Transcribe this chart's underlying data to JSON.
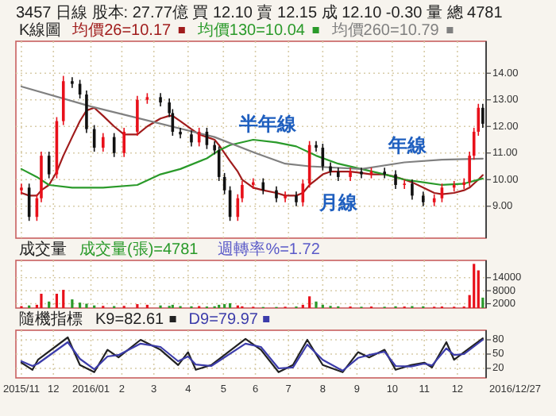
{
  "chart_data": [
    {
      "type": "candlestick",
      "title": "3457 日線 股本: 27.77億 買 12.10 賣 12.15 成 12.10 -0.30 量 總 4781",
      "subtitle": "K線圖",
      "legend": "top left",
      "grid": true,
      "tick_labels": "y",
      "xlim": [
        "2015-10-28",
        "2016-12-27"
      ],
      "xticks": [
        {
          "value": "2015-11-02",
          "label": null
        },
        {
          "value": "2015-12-01",
          "label": null
        },
        {
          "value": "2016-01-04",
          "label": null
        },
        {
          "value": "2016-02-01",
          "label": null
        },
        {
          "value": "2016-03-01",
          "label": null
        },
        {
          "value": "2016-04-01",
          "label": null
        },
        {
          "value": "2016-05-03",
          "label": null
        },
        {
          "value": "2016-06-01",
          "label": null
        },
        {
          "value": "2016-07-01",
          "label": null
        },
        {
          "value": "2016-08-01",
          "label": null
        },
        {
          "value": "2016-09-01",
          "label": null
        },
        {
          "value": "2016-10-03",
          "label": null
        },
        {
          "value": "2016-11-01",
          "label": null
        },
        {
          "value": "2016-12-01",
          "label": null
        }
      ],
      "ylim": [
        7.8,
        15.2
      ],
      "yticks": [
        {
          "value": 9,
          "label": "9.00"
        },
        {
          "value": 10,
          "label": "10.00"
        },
        {
          "value": 11,
          "label": "11.00"
        },
        {
          "value": 12,
          "label": "12.00"
        },
        {
          "value": 13,
          "label": "13.00"
        },
        {
          "value": 14,
          "label": "14.00"
        }
      ],
      "x": [
        "2015-11-02",
        "2015-11-09",
        "2015-11-16",
        "2015-11-20",
        "2015-11-27",
        "2015-12-04",
        "2015-12-10",
        "2015-12-18",
        "2015-12-25",
        "2015-12-31",
        "2016-01-07",
        "2016-01-15",
        "2016-01-25",
        "2016-02-03",
        "2016-02-15",
        "2016-02-24",
        "2016-03-07",
        "2016-03-15",
        "2016-03-18",
        "2016-03-25",
        "2016-04-04",
        "2016-04-11",
        "2016-04-18",
        "2016-04-25",
        "2016-04-29",
        "2016-05-04",
        "2016-05-09",
        "2016-05-16",
        "2016-05-20",
        "2016-05-30",
        "2016-06-08",
        "2016-06-20",
        "2016-06-28",
        "2016-07-08",
        "2016-07-14",
        "2016-07-20",
        "2016-07-26",
        "2016-08-01",
        "2016-08-08",
        "2016-08-15",
        "2016-08-26",
        "2016-09-05",
        "2016-09-14",
        "2016-09-26",
        "2016-10-06",
        "2016-10-14",
        "2016-10-21",
        "2016-10-31",
        "2016-11-10",
        "2016-11-17",
        "2016-11-28",
        "2016-12-07",
        "2016-12-12",
        "2016-12-16",
        "2016-12-20",
        "2016-12-24"
      ],
      "ohlc": [
        [
          9.6,
          9.85,
          9.45,
          9.7
        ],
        [
          9.7,
          9.85,
          8.45,
          8.6
        ],
        [
          8.6,
          9.45,
          8.45,
          9.3
        ],
        [
          9.3,
          11.05,
          9.15,
          10.9
        ],
        [
          10.9,
          11.05,
          10.05,
          10.2
        ],
        [
          10.2,
          12.35,
          10.05,
          12.2
        ],
        [
          12.2,
          13.9,
          12.05,
          13.7
        ],
        [
          13.7,
          13.85,
          13.45,
          13.6
        ],
        [
          13.6,
          13.75,
          13.05,
          13.2
        ],
        [
          13.2,
          13.35,
          11.75,
          11.9
        ],
        [
          11.9,
          12.05,
          11.05,
          11.2
        ],
        [
          11.2,
          11.75,
          11.05,
          11.6
        ],
        [
          11.6,
          11.75,
          10.85,
          11
        ],
        [
          11,
          11.95,
          10.85,
          11.8
        ],
        [
          11.8,
          13.15,
          11.65,
          13
        ],
        [
          13,
          13.25,
          12.85,
          13.1
        ],
        [
          13.1,
          13.25,
          12.75,
          12.9
        ],
        [
          12.9,
          13.05,
          12.35,
          12.5
        ],
        [
          12.5,
          12.65,
          11.65,
          11.8
        ],
        [
          11.8,
          11.95,
          11.55,
          11.7
        ],
        [
          11.7,
          11.85,
          11.25,
          11.4
        ],
        [
          11.4,
          11.95,
          11.25,
          11.8
        ],
        [
          11.8,
          11.95,
          11.15,
          11.3
        ],
        [
          11.3,
          11.45,
          10.95,
          11.1
        ],
        [
          11.1,
          11.25,
          9.95,
          10.1
        ],
        [
          10.1,
          10.25,
          9.45,
          9.6
        ],
        [
          9.6,
          9.75,
          8.45,
          8.6
        ],
        [
          8.6,
          9.45,
          8.45,
          9.3
        ],
        [
          9.3,
          9.95,
          9.15,
          9.8
        ],
        [
          9.8,
          10.05,
          9.65,
          9.9
        ],
        [
          9.9,
          10.05,
          9.45,
          9.6
        ],
        [
          9.6,
          9.75,
          9.15,
          9.3
        ],
        [
          9.3,
          9.55,
          9.15,
          9.4
        ],
        [
          9.4,
          9.55,
          9,
          9.15
        ],
        [
          9.15,
          10,
          9,
          9.85
        ],
        [
          9.85,
          11.45,
          9.7,
          11.3
        ],
        [
          11.3,
          11.45,
          11.05,
          11.2
        ],
        [
          11.2,
          11.35,
          10.35,
          10.5
        ],
        [
          10.5,
          10.65,
          10.15,
          10.3
        ],
        [
          10.3,
          10.45,
          9.95,
          10.1
        ],
        [
          10.1,
          10.45,
          9.95,
          10.3
        ],
        [
          10.3,
          10.45,
          10.05,
          10.2
        ],
        [
          10.2,
          10.45,
          10.05,
          10.3
        ],
        [
          10.3,
          10.45,
          10.05,
          10.2
        ],
        [
          10.2,
          10.35,
          9.65,
          9.8
        ],
        [
          9.8,
          10,
          9.65,
          9.85
        ],
        [
          9.85,
          10,
          9.25,
          9.4
        ],
        [
          9.4,
          9.55,
          9,
          9.15
        ],
        [
          9.15,
          9.45,
          9,
          9.3
        ],
        [
          9.3,
          9.85,
          9.15,
          9.7
        ],
        [
          9.7,
          9.95,
          9.55,
          9.8
        ],
        [
          9.8,
          10.05,
          9.65,
          9.9
        ],
        [
          9.9,
          11.05,
          9.75,
          10.9
        ],
        [
          10.9,
          11.95,
          10.75,
          11.8
        ],
        [
          11.8,
          12.85,
          11.65,
          12.7
        ],
        [
          12.7,
          12.85,
          11.95,
          12.1
        ]
      ],
      "series": [
        {
          "name": "均價26=10.17",
          "type": "line",
          "color": "#a01c1c",
          "values": [
            9.5,
            9.4,
            9.4,
            9.6,
            9.8,
            10.3,
            10.9,
            11.6,
            12.2,
            12.6,
            12.7,
            12.4,
            12.0,
            11.7,
            11.7,
            12.0,
            12.3,
            12.4,
            12.4,
            12.2,
            11.9,
            11.7,
            11.6,
            11.5,
            11.3,
            11.0,
            10.7,
            10.3,
            10.0,
            9.7,
            9.6,
            9.5,
            9.4,
            9.4,
            9.5,
            9.8,
            10.0,
            10.2,
            10.3,
            10.3,
            10.3,
            10.25,
            10.2,
            10.2,
            10.1,
            10.0,
            9.9,
            9.7,
            9.5,
            9.45,
            9.5,
            9.6,
            9.7,
            9.85,
            10.0,
            10.17
          ]
        },
        {
          "name": "均價130=10.04",
          "type": "line",
          "color": "#2a9a2a",
          "x": [
            "2015-11-02",
            "2015-11-16",
            "2015-11-27",
            "2015-12-18",
            "2016-01-15",
            "2016-02-15",
            "2016-03-07",
            "2016-03-25",
            "2016-04-18",
            "2016-04-29",
            "2016-05-09",
            "2016-05-30",
            "2016-06-20",
            "2016-07-08",
            "2016-07-26",
            "2016-08-15",
            "2016-09-05",
            "2016-09-26",
            "2016-10-14",
            "2016-10-31",
            "2016-11-17",
            "2016-12-07",
            "2016-12-24"
          ],
          "values": [
            10.4,
            10.1,
            9.8,
            9.7,
            9.7,
            9.8,
            10.2,
            10.4,
            10.8,
            11.1,
            11.3,
            11.5,
            11.4,
            11.25,
            10.9,
            10.6,
            10.4,
            10.2,
            10.0,
            9.9,
            9.8,
            9.85,
            10.04
          ]
        },
        {
          "name": "均價260=10.79",
          "type": "line",
          "color": "#808080",
          "x": [
            "2015-11-02",
            "2016-01-04",
            "2016-04-25",
            "2016-06-01",
            "2016-06-28",
            "2016-07-20",
            "2016-09-05",
            "2016-10-14",
            "2016-11-17",
            "2016-12-24"
          ],
          "values": [
            13.5,
            12.75,
            11.6,
            11.0,
            10.6,
            10.5,
            10.4,
            10.65,
            10.75,
            10.79
          ]
        }
      ],
      "annotations": [
        "半年線",
        "年線",
        "月線"
      ]
    },
    {
      "type": "bar",
      "title": "成交量",
      "grid": true,
      "tick_labels": "y",
      "xlim": [
        "2015-10-28",
        "2016-12-27"
      ],
      "xticks": [
        {
          "value": "2015-11-02",
          "label": null
        },
        {
          "value": "2015-12-01",
          "label": null
        },
        {
          "value": "2016-01-04",
          "label": null
        },
        {
          "value": "2016-02-01",
          "label": null
        },
        {
          "value": "2016-03-01",
          "label": null
        },
        {
          "value": "2016-04-01",
          "label": null
        },
        {
          "value": "2016-05-03",
          "label": null
        },
        {
          "value": "2016-06-01",
          "label": null
        },
        {
          "value": "2016-07-01",
          "label": null
        },
        {
          "value": "2016-08-01",
          "label": null
        },
        {
          "value": "2016-09-01",
          "label": null
        },
        {
          "value": "2016-10-03",
          "label": null
        },
        {
          "value": "2016-11-01",
          "label": null
        },
        {
          "value": "2016-12-01",
          "label": null
        }
      ],
      "ylim": [
        0,
        22000
      ],
      "yticks": [
        2000,
        8000,
        14000
      ],
      "x": [
        "2015-11-02",
        "2015-11-09",
        "2015-11-16",
        "2015-11-20",
        "2015-11-27",
        "2015-12-04",
        "2015-12-10",
        "2015-12-18",
        "2015-12-25",
        "2015-12-31",
        "2016-01-07",
        "2016-01-15",
        "2016-01-25",
        "2016-02-03",
        "2016-02-15",
        "2016-02-24",
        "2016-03-07",
        "2016-03-15",
        "2016-03-18",
        "2016-03-25",
        "2016-04-04",
        "2016-04-11",
        "2016-04-18",
        "2016-04-25",
        "2016-04-29",
        "2016-05-04",
        "2016-05-09",
        "2016-05-16",
        "2016-05-20",
        "2016-05-30",
        "2016-06-08",
        "2016-06-20",
        "2016-06-28",
        "2016-07-08",
        "2016-07-14",
        "2016-07-20",
        "2016-07-26",
        "2016-08-01",
        "2016-08-08",
        "2016-08-15",
        "2016-08-26",
        "2016-09-05",
        "2016-09-14",
        "2016-09-26",
        "2016-10-06",
        "2016-10-14",
        "2016-10-21",
        "2016-10-31",
        "2016-11-10",
        "2016-11-17",
        "2016-11-28",
        "2016-12-07",
        "2016-12-12",
        "2016-12-16",
        "2016-12-20",
        "2016-12-24"
      ],
      "values": [
        900,
        1200,
        1500,
        6600,
        3000,
        6600,
        8400,
        4000,
        2500,
        2000,
        1200,
        1000,
        900,
        1000,
        1800,
        1500,
        1200,
        1000,
        1500,
        900,
        800,
        900,
        700,
        800,
        1500,
        1800,
        2200,
        1200,
        800,
        600,
        500,
        500,
        600,
        700,
        1500,
        5400,
        3000,
        1500,
        1000,
        800,
        700,
        600,
        700,
        600,
        800,
        700,
        900,
        800,
        600,
        700,
        600,
        700,
        6000,
        20400,
        17400,
        4800
      ],
      "colors": [
        "#e8101a",
        "#2a9a2a",
        "#e8101a",
        "#e8101a",
        "#2a9a2a",
        "#e8101a",
        "#e8101a",
        "#2a9a2a",
        "#2a9a2a",
        "#2a9a2a",
        "#2a9a2a",
        "#e8101a",
        "#2a9a2a",
        "#e8101a",
        "#e8101a",
        "#e8101a",
        "#2a9a2a",
        "#2a9a2a",
        "#2a9a2a",
        "#2a9a2a",
        "#2a9a2a",
        "#e8101a",
        "#2a9a2a",
        "#2a9a2a",
        "#2a9a2a",
        "#2a9a2a",
        "#2a9a2a",
        "#e8101a",
        "#e8101a",
        "#e8101a",
        "#2a9a2a",
        "#2a9a2a",
        "#e8101a",
        "#2a9a2a",
        "#e8101a",
        "#e8101a",
        "#2a9a2a",
        "#2a9a2a",
        "#2a9a2a",
        "#2a9a2a",
        "#e8101a",
        "#2a9a2a",
        "#e8101a",
        "#2a9a2a",
        "#2a9a2a",
        "#e8101a",
        "#2a9a2a",
        "#2a9a2a",
        "#e8101a",
        "#e8101a",
        "#e8101a",
        "#e8101a",
        "#e8101a",
        "#e8101a",
        "#e8101a",
        "#2a9a2a"
      ],
      "annotations": [
        "成交量(張)=4781",
        "週轉率%=1.72"
      ]
    },
    {
      "type": "line",
      "title": "隨機指標",
      "legend": "top left",
      "grid": true,
      "xlim": [
        "2015-10-28",
        "2016-12-27"
      ],
      "xticks": [
        {
          "value": "2015-11-02",
          "label": "2015/11"
        },
        {
          "value": "2015-12-01",
          "label": "12"
        },
        {
          "value": "2016-01-04",
          "label": "2016/01"
        },
        {
          "value": "2016-02-01",
          "label": "2"
        },
        {
          "value": "2016-03-01",
          "label": "3"
        },
        {
          "value": "2016-04-01",
          "label": "4"
        },
        {
          "value": "2016-05-03",
          "label": "5"
        },
        {
          "value": "2016-06-01",
          "label": "6"
        },
        {
          "value": "2016-07-01",
          "label": "7"
        },
        {
          "value": "2016-08-01",
          "label": "8"
        },
        {
          "value": "2016-09-01",
          "label": "9"
        },
        {
          "value": "2016-10-03",
          "label": "10"
        },
        {
          "value": "2016-11-01",
          "label": "11"
        },
        {
          "value": "2016-12-01",
          "label": "12"
        }
      ],
      "ylim": [
        0,
        100
      ],
      "yticks": [
        20,
        50,
        80
      ],
      "x": [
        "2015-11-02",
        "2015-11-12",
        "2015-11-17",
        "2015-12-14",
        "2015-12-25",
        "2016-01-07",
        "2016-01-19",
        "2016-01-29",
        "2016-02-18",
        "2016-03-07",
        "2016-03-23",
        "2016-04-01",
        "2016-04-08",
        "2016-04-22",
        "2016-05-23",
        "2016-06-06",
        "2016-06-22",
        "2016-07-05",
        "2016-07-18",
        "2016-08-01",
        "2016-08-19",
        "2016-09-02",
        "2016-09-12",
        "2016-09-26",
        "2016-10-06",
        "2016-10-20",
        "2016-11-01",
        "2016-11-08",
        "2016-11-21",
        "2016-11-28",
        "2016-12-07",
        "2016-12-24"
      ],
      "series": [
        {
          "name": "K9=82.61",
          "color": "#222222",
          "values": [
            32,
            17,
            38,
            85,
            27,
            12,
            59,
            43,
            80,
            59,
            27,
            54,
            17,
            27,
            82,
            59,
            12,
            27,
            80,
            27,
            12,
            54,
            43,
            59,
            17,
            27,
            32,
            22,
            75,
            38,
            54,
            83
          ]
        },
        {
          "name": "D9=79.97",
          "color": "#3c3caa",
          "values": [
            35,
            25,
            30,
            75,
            40,
            18,
            45,
            48,
            72,
            65,
            35,
            45,
            28,
            25,
            72,
            65,
            20,
            22,
            70,
            38,
            15,
            42,
            48,
            55,
            25,
            24,
            30,
            26,
            62,
            48,
            50,
            80
          ]
        }
      ],
      "annotations": [
        "2016/12/27"
      ]
    }
  ]
}
